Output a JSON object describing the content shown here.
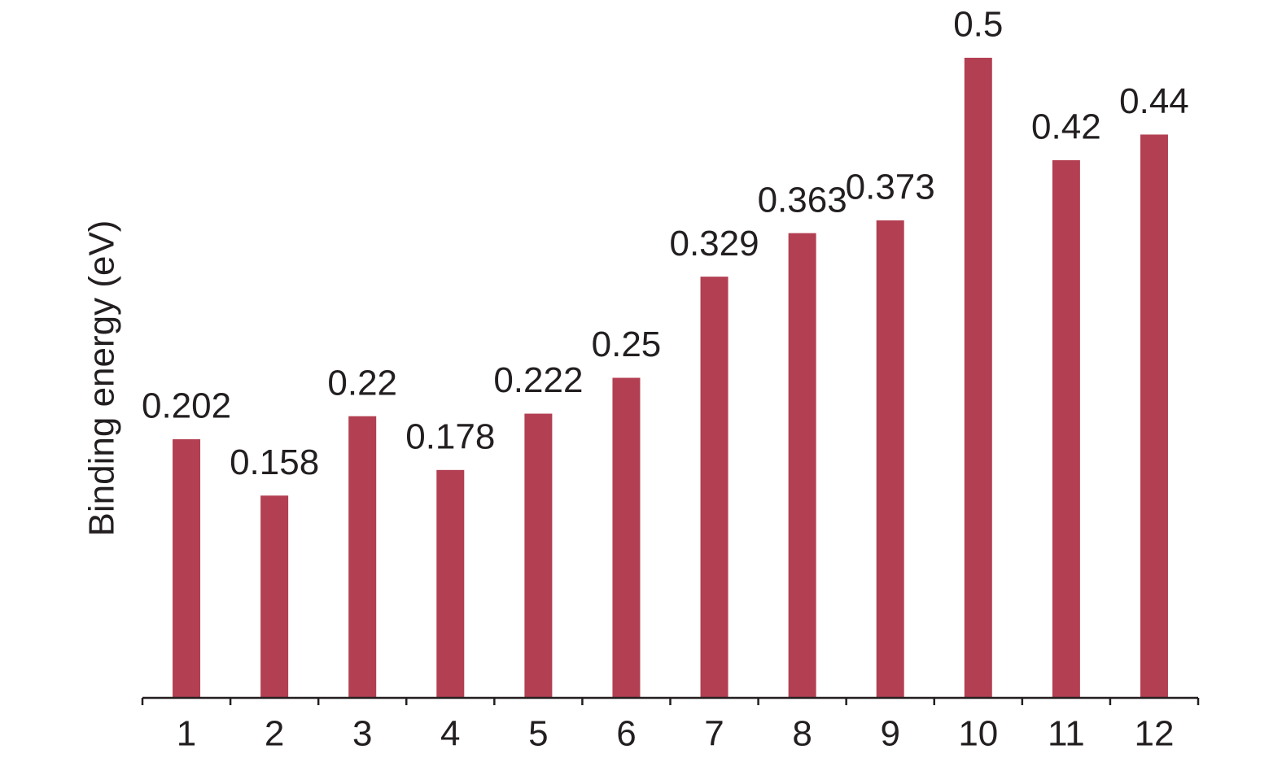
{
  "chart_data": {
    "type": "bar",
    "y_label": "Binding energy (eV)",
    "categories": [
      "1",
      "2",
      "3",
      "4",
      "5",
      "6",
      "7",
      "8",
      "9",
      "10",
      "11",
      "12"
    ],
    "values": [
      0.202,
      0.158,
      0.22,
      0.178,
      0.222,
      0.25,
      0.329,
      0.363,
      0.373,
      0.5,
      0.42,
      0.44
    ],
    "color": "#b33f52",
    "ylim": [
      0,
      0.5
    ]
  }
}
